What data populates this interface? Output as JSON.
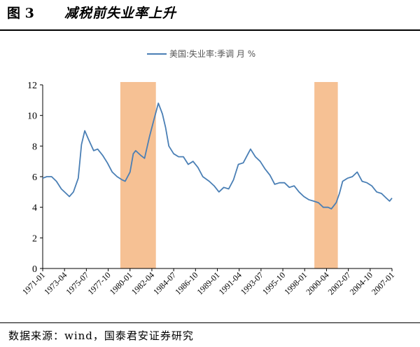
{
  "figure": {
    "number": "图 3",
    "title": "减税前失业率上升"
  },
  "source": "数据来源：wind，国泰君安证券研究",
  "colors": {
    "line": "#4a7fb5",
    "shade": "#f6c194",
    "axis": "#000000"
  },
  "chart_data": {
    "type": "line",
    "title": "",
    "xlabel": "",
    "ylabel": "",
    "ylim": [
      0,
      12
    ],
    "yticks": [
      0,
      2,
      4,
      6,
      8,
      10,
      12
    ],
    "xticks": [
      "1971-01",
      "1973-04",
      "1975-07",
      "1977-10",
      "1980-01",
      "1982-04",
      "1984-07",
      "1986-10",
      "1989-01",
      "1991-04",
      "1993-07",
      "1995-10",
      "1998-01",
      "2000-04",
      "2002-07",
      "2004-10",
      "2007-01"
    ],
    "xlim": [
      "1971-01",
      "2007-01"
    ],
    "grid": false,
    "legend": "top-center",
    "series": [
      {
        "name": "美国:失业率:季调 月 %",
        "points": [
          [
            "1971-01",
            5.9
          ],
          [
            "1971-06",
            6.0
          ],
          [
            "1971-12",
            6.0
          ],
          [
            "1972-06",
            5.7
          ],
          [
            "1972-12",
            5.2
          ],
          [
            "1973-06",
            4.9
          ],
          [
            "1973-10",
            4.7
          ],
          [
            "1974-03",
            5.0
          ],
          [
            "1974-09",
            5.9
          ],
          [
            "1975-01",
            8.1
          ],
          [
            "1975-05",
            9.0
          ],
          [
            "1975-10",
            8.4
          ],
          [
            "1976-04",
            7.7
          ],
          [
            "1976-09",
            7.8
          ],
          [
            "1977-03",
            7.4
          ],
          [
            "1977-09",
            6.9
          ],
          [
            "1978-03",
            6.3
          ],
          [
            "1978-09",
            6.0
          ],
          [
            "1979-03",
            5.8
          ],
          [
            "1979-07",
            5.7
          ],
          [
            "1980-01",
            6.3
          ],
          [
            "1980-05",
            7.5
          ],
          [
            "1980-08",
            7.7
          ],
          [
            "1981-02",
            7.4
          ],
          [
            "1981-07",
            7.2
          ],
          [
            "1982-01",
            8.6
          ],
          [
            "1982-06",
            9.6
          ],
          [
            "1982-10",
            10.4
          ],
          [
            "1982-12",
            10.8
          ],
          [
            "1983-05",
            10.1
          ],
          [
            "1983-09",
            9.2
          ],
          [
            "1984-01",
            8.0
          ],
          [
            "1984-07",
            7.5
          ],
          [
            "1985-01",
            7.3
          ],
          [
            "1985-07",
            7.3
          ],
          [
            "1986-01",
            6.8
          ],
          [
            "1986-07",
            7.0
          ],
          [
            "1987-01",
            6.6
          ],
          [
            "1987-07",
            6.0
          ],
          [
            "1988-03",
            5.7
          ],
          [
            "1988-09",
            5.4
          ],
          [
            "1989-03",
            5.0
          ],
          [
            "1989-09",
            5.3
          ],
          [
            "1990-03",
            5.2
          ],
          [
            "1990-09",
            5.8
          ],
          [
            "1991-03",
            6.8
          ],
          [
            "1991-09",
            6.9
          ],
          [
            "1992-06",
            7.8
          ],
          [
            "1992-12",
            7.3
          ],
          [
            "1993-06",
            7.0
          ],
          [
            "1993-12",
            6.5
          ],
          [
            "1994-06",
            6.1
          ],
          [
            "1994-12",
            5.5
          ],
          [
            "1995-06",
            5.6
          ],
          [
            "1995-12",
            5.6
          ],
          [
            "1996-06",
            5.3
          ],
          [
            "1996-12",
            5.4
          ],
          [
            "1997-06",
            5.0
          ],
          [
            "1997-12",
            4.7
          ],
          [
            "1998-06",
            4.5
          ],
          [
            "1998-12",
            4.4
          ],
          [
            "1999-06",
            4.3
          ],
          [
            "1999-12",
            4.0
          ],
          [
            "2000-06",
            4.0
          ],
          [
            "2000-10",
            3.9
          ],
          [
            "2001-04",
            4.3
          ],
          [
            "2001-08",
            4.9
          ],
          [
            "2001-12",
            5.7
          ],
          [
            "2002-06",
            5.9
          ],
          [
            "2002-12",
            6.0
          ],
          [
            "2003-06",
            6.3
          ],
          [
            "2003-12",
            5.7
          ],
          [
            "2004-06",
            5.6
          ],
          [
            "2004-12",
            5.4
          ],
          [
            "2005-06",
            5.0
          ],
          [
            "2005-12",
            4.9
          ],
          [
            "2006-06",
            4.6
          ],
          [
            "2006-10",
            4.4
          ],
          [
            "2007-01",
            4.6
          ]
        ]
      }
    ],
    "shaded_periods": [
      {
        "start": "1979-01",
        "end": "1982-09"
      },
      {
        "start": "1999-01",
        "end": "2001-06"
      }
    ]
  }
}
